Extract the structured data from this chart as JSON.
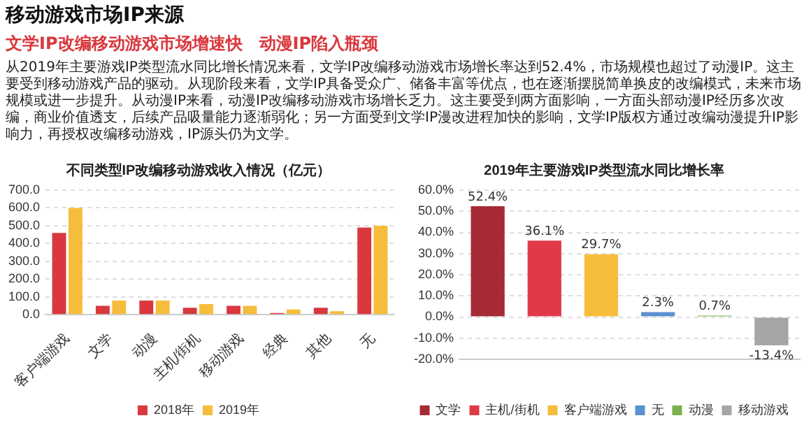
{
  "chart_data": [
    {
      "type": "other",
      "title": "移动游戏市场IP来源",
      "subtitle": "文学IP改编移动游戏市场增速快　动漫IP陷入瓶颈",
      "annotations": [
        "从2019年主要游戏IP类型流水同比增长情况来看，文学IP改编移动游戏市场增长率达到52.4%，市场规模也超过了动漫IP。这主要受到移动游戏产品的驱动。从现阶段来看，文学IP具备受众广、储备丰富等优点，也在逐渐摆脱简单换皮的改编模式，未来市场规模或进一步提升。从动漫IP来看，动漫IP改编移动游戏市场增长乏力。这主要受到两方面影响，一方面头部动漫IP经历多次改编，商业价值透支，后续产品吸量能力逐渐弱化；另一方面受到文学IP漫改进程加快的影响，文学IP版权方通过改编动漫提升IP影响力，再授权改编移动游戏，IP源头仍为文学。"
      ]
    },
    {
      "type": "bar",
      "title": "不同类型IP改编移动游戏收入情况（亿元）",
      "categories": [
        "客户端游戏",
        "文学",
        "动漫",
        "主机/街机",
        "移动游戏",
        "经典",
        "其他",
        "无"
      ],
      "series": [
        {
          "name": "2018年",
          "color": "#d9383e",
          "values": [
            460,
            50,
            80,
            40,
            50,
            10,
            40,
            490
          ]
        },
        {
          "name": "2019年",
          "color": "#f5bd3b",
          "values": [
            600,
            80,
            80,
            60,
            50,
            30,
            20,
            500
          ]
        }
      ],
      "ylim": [
        0,
        700
      ],
      "yticks": [
        {
          "value": 0,
          "label": "0.0"
        },
        {
          "value": 100,
          "label": "100.0"
        },
        {
          "value": 200,
          "label": "200.0"
        },
        {
          "value": 300,
          "label": "300.0"
        },
        {
          "value": 400,
          "label": "400.0"
        },
        {
          "value": 500,
          "label": "500.0"
        },
        {
          "value": 600,
          "label": "600.0"
        },
        {
          "value": 700,
          "label": "700.0"
        }
      ],
      "grid": "y",
      "legend": "bottom"
    },
    {
      "type": "bar",
      "title": "2019年主要游戏IP类型流水同比增长率",
      "categories": [
        null,
        null,
        null,
        null,
        null,
        null
      ],
      "series": [
        {
          "name": "文学",
          "color": "#a52a35",
          "values": [
            52.4,
            null,
            null,
            null,
            null,
            null
          ],
          "value_labels": [
            "52.4%",
            null,
            null,
            null,
            null,
            null
          ]
        },
        {
          "name": "主机/街机",
          "color": "#e03a48",
          "values": [
            null,
            36.1,
            null,
            null,
            null,
            null
          ],
          "value_labels": [
            null,
            "36.1%",
            null,
            null,
            null,
            null
          ]
        },
        {
          "name": "客户端游戏",
          "color": "#f5bd3b",
          "values": [
            null,
            null,
            29.7,
            null,
            null,
            null
          ],
          "value_labels": [
            null,
            null,
            "29.7%",
            null,
            null,
            null
          ]
        },
        {
          "name": "无",
          "color": "#5b8fd0",
          "values": [
            null,
            null,
            null,
            2.3,
            null,
            null
          ],
          "value_labels": [
            null,
            null,
            null,
            "2.3%",
            null,
            null
          ]
        },
        {
          "name": "动漫",
          "color": "#7cb14e",
          "values": [
            null,
            null,
            null,
            null,
            0.7,
            null
          ],
          "value_labels": [
            null,
            null,
            null,
            null,
            "0.7%",
            null
          ]
        },
        {
          "name": "移动游戏",
          "color": "#a6a6a6",
          "values": [
            null,
            null,
            null,
            null,
            null,
            -13.4
          ],
          "value_labels": [
            null,
            null,
            null,
            null,
            null,
            "-13.4%"
          ]
        }
      ],
      "ylim": [
        -20,
        60
      ],
      "yticks": [
        {
          "value": -20,
          "label": "-20.0%"
        },
        {
          "value": -10,
          "label": "-10.0%"
        },
        {
          "value": 0,
          "label": "0.0%"
        },
        {
          "value": 10,
          "label": "10.0%"
        },
        {
          "value": 20,
          "label": "20.0%"
        },
        {
          "value": 30,
          "label": "30.0%"
        },
        {
          "value": 40,
          "label": "40.0%"
        },
        {
          "value": 50,
          "label": "50.0%"
        },
        {
          "value": 60,
          "label": "60.0%"
        }
      ],
      "grid": "y",
      "legend": "bottom"
    }
  ]
}
